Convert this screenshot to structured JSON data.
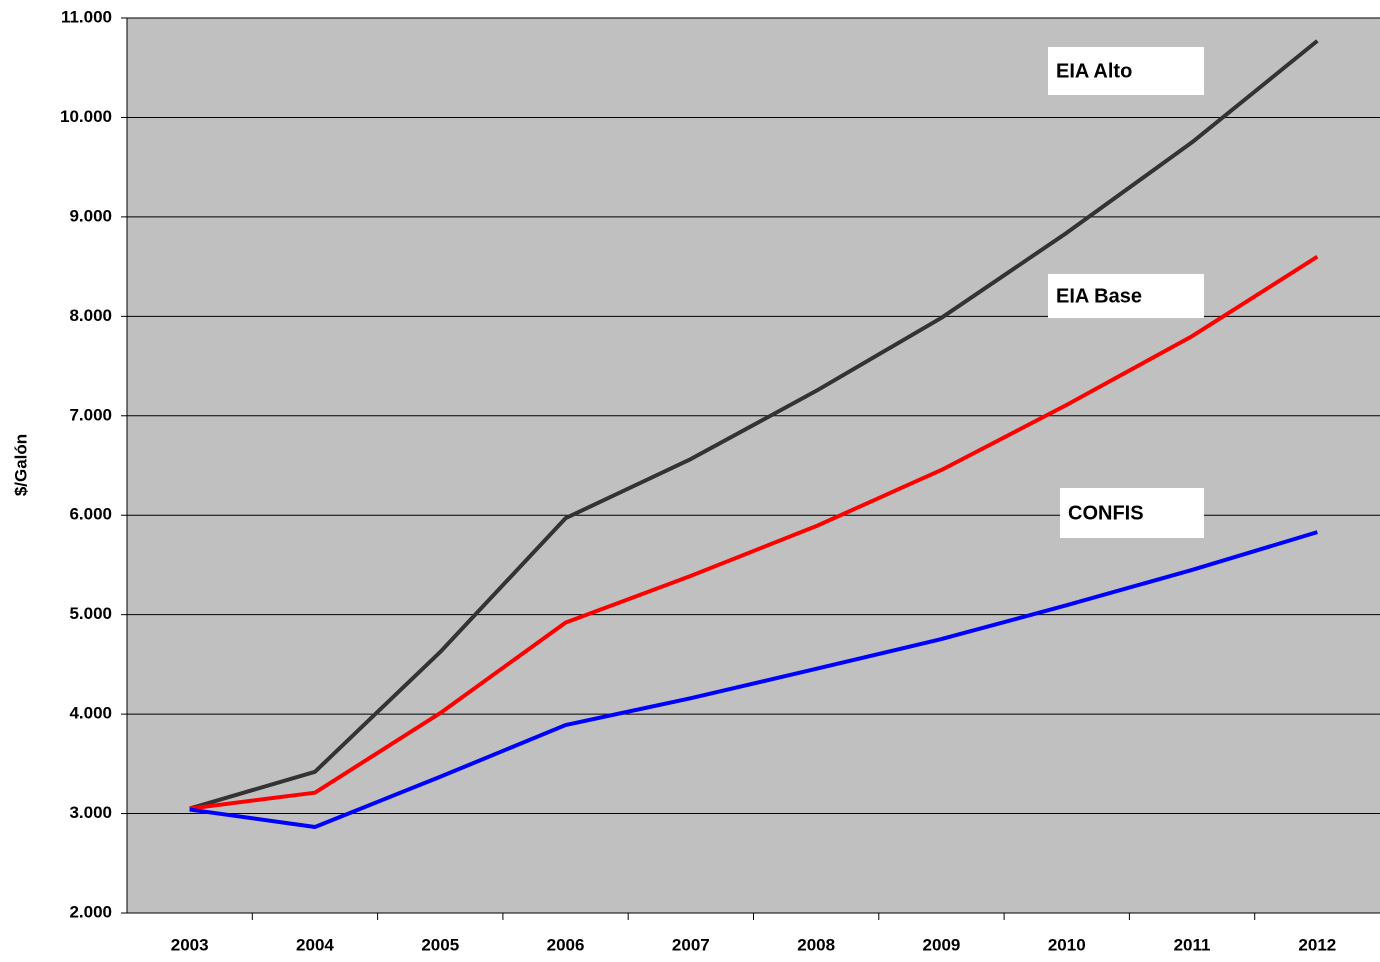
{
  "chart_data": {
    "type": "line",
    "y_label": "$/Galón",
    "categories": [
      "2003",
      "2004",
      "2005",
      "2006",
      "2007",
      "2008",
      "2009",
      "2010",
      "2011",
      "2012"
    ],
    "series": [
      {
        "name": "EIA Alto",
        "color": "#333333",
        "values": [
          3050,
          3420,
          4625,
          5970,
          6565,
          7250,
          7985,
          8840,
          9750,
          10770
        ]
      },
      {
        "name": "EIA Base",
        "color": "#ff0000",
        "values": [
          3050,
          3210,
          4010,
          4920,
          5390,
          5890,
          6455,
          7110,
          7800,
          8600
        ]
      },
      {
        "name": "CONFIS",
        "color": "#0000ff",
        "values": [
          3040,
          2865,
          3370,
          3890,
          4160,
          4455,
          4755,
          5095,
          5450,
          5830
        ]
      }
    ],
    "ylim": [
      2000,
      11000
    ],
    "yticks": [
      {
        "value": 2000,
        "label": "2.000"
      },
      {
        "value": 3000,
        "label": "3.000"
      },
      {
        "value": 4000,
        "label": "4.000"
      },
      {
        "value": 5000,
        "label": "5.000"
      },
      {
        "value": 6000,
        "label": "6.000"
      },
      {
        "value": 7000,
        "label": "7.000"
      },
      {
        "value": 8000,
        "label": "8.000"
      },
      {
        "value": 9000,
        "label": "9.000"
      },
      {
        "value": 10000,
        "label": "10.000"
      },
      {
        "value": 11000,
        "label": "11.000"
      }
    ],
    "grid": true,
    "background": "#c0c0c0"
  }
}
